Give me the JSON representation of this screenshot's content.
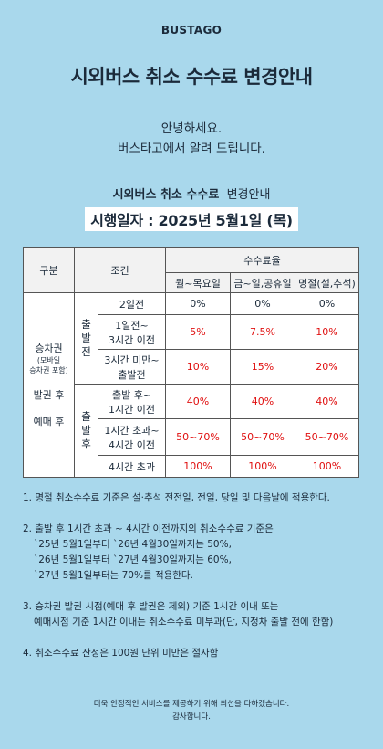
{
  "brand": "BUSTAGO",
  "title": "시외버스 취소 수수료 변경안내",
  "greeting": [
    "안녕하세요.",
    "버스타고에서 알려 드립니다."
  ],
  "subtitle": {
    "bold": "시외버스 취소 수수료",
    "normal": "변경안내"
  },
  "effective": "시행일자 : 2025년 5월1일 (목)",
  "table": {
    "h_gubun": "구분",
    "h_condition": "조건",
    "h_rate": "수수료율",
    "col_weekday": "월~목요일",
    "col_weekend": "금~일,공휴일",
    "col_holiday": "명절(설,추석)",
    "left_label": {
      "line1": "승차권",
      "line2": "(모바일",
      "line3": "승차권 포함)",
      "line4": "발권 후",
      "line5": "예매 후"
    },
    "before_label": [
      "출",
      "발",
      "전"
    ],
    "after_label": [
      "출",
      "발",
      "후"
    ],
    "rows": [
      {
        "cond": [
          "2일전"
        ],
        "v1": "0%",
        "v2": "0%",
        "v3": "0%",
        "red": false
      },
      {
        "cond": [
          "1일전~",
          "3시간 이전"
        ],
        "v1": "5%",
        "v2": "7.5%",
        "v3": "10%",
        "red": true
      },
      {
        "cond": [
          "3시간 미만~",
          "출발전"
        ],
        "v1": "10%",
        "v2": "15%",
        "v3": "20%",
        "red": true
      },
      {
        "cond": [
          "출발 후~",
          "1시간 이전"
        ],
        "v1": "40%",
        "v2": "40%",
        "v3": "40%",
        "red": true
      },
      {
        "cond": [
          "1시간 초과~",
          "4시간 이전"
        ],
        "v1": "50~70%",
        "v2": "50~70%",
        "v3": "50~70%",
        "red": true
      },
      {
        "cond": [
          "4시간 초과"
        ],
        "v1": "100%",
        "v2": "100%",
        "v3": "100%",
        "red": true
      }
    ]
  },
  "notes": [
    [
      "1. 명절 취소수수료 기준은 설·추석 전전일, 전일, 당일 및 다음날에 적용한다."
    ],
    [
      "2. 출발 후 1시간 초과 ~ 4시간 이전까지의 취소수수료 기준은",
      "`25년 5월1일부터 `26년 4월30일까지는 50%,",
      "`26년 5월1일부터 `27년 4월30일까지는 60%,",
      "`27년 5월1일부터는 70%를 적용한다."
    ],
    [
      "3. 승차권 발권 시점(예매 후 발권은 제외) 기준 1시간 이내 또는",
      "예매시점 기준 1시간 이내는 취소수수료 미부과(단, 지정차 출발 전에 한함)"
    ],
    [
      "4. 취소수수료 산정은 100원 단위 미만은 절사함"
    ]
  ],
  "footer": [
    "더욱 안정적인 서비스를 제공하기 위해 최선을 다하겠습니다.",
    "감사합니다."
  ],
  "colors": {
    "background": "#a9d8ec",
    "highlight": "#e01010"
  }
}
